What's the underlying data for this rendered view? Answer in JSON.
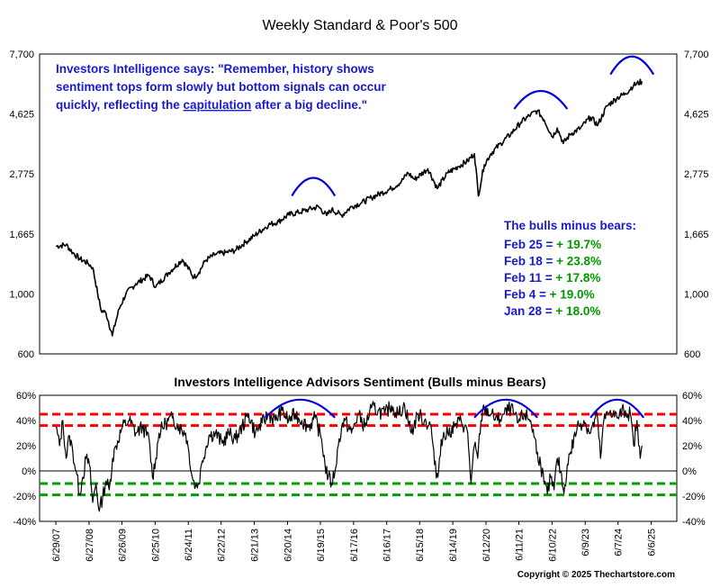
{
  "chart_data": [
    {
      "type": "line",
      "title": "Weekly Standard & Poor's 500",
      "y_scale": "log",
      "ylim": [
        600,
        7700
      ],
      "yticks": [
        "7,700",
        "4,625",
        "2,775",
        "1,665",
        "1,000",
        "600"
      ],
      "ytick_values": [
        7700,
        4625,
        2775,
        1665,
        1000,
        600
      ],
      "annotation": {
        "line1_pre": "Investors Intelligence says: \"Remember, history shows",
        "line2": "sentiment tops form slowly but bottom signals can occur",
        "line3_pre": "quickly, reflecting the ",
        "line3_underlined": "capitulation",
        "line3_post": " after a big decline.\""
      },
      "bulls_minus_bears_box": {
        "heading": "The bulls minus bears:",
        "rows": [
          {
            "date": "Feb 25 = ",
            "value": "+ 19.7%"
          },
          {
            "date": "Feb 18 = ",
            "value": "+ 23.8%"
          },
          {
            "date": "Feb 11 = ",
            "value": "+ 17.8%"
          },
          {
            "date": "Feb 4 = ",
            "value": "+ 19.0%"
          },
          {
            "date": "Jan 28 = ",
            "value": "+ 18.0%"
          }
        ]
      },
      "series": [
        {
          "x": [
            2007.49,
            2007.8,
            2008.0,
            2008.2,
            2008.45,
            2008.6,
            2008.75,
            2008.85,
            2009.0,
            2009.19,
            2009.4,
            2009.6,
            2009.9,
            2010.3,
            2010.5,
            2010.9,
            2011.3,
            2011.65,
            2011.8,
            2012.0,
            2012.3,
            2012.6,
            2012.9,
            2013.2,
            2013.5,
            2013.9,
            2014.2,
            2014.5,
            2014.8,
            2015.1,
            2015.4,
            2015.65,
            2015.8,
            2016.1,
            2016.4,
            2016.7,
            2017.0,
            2017.3,
            2017.6,
            2017.9,
            2018.1,
            2018.3,
            2018.7,
            2018.98,
            2019.3,
            2019.6,
            2019.9,
            2020.1,
            2020.22,
            2020.4,
            2020.6,
            2020.9,
            2021.2,
            2021.5,
            2021.8,
            2022.0,
            2022.2,
            2022.45,
            2022.6,
            2022.78,
            2023.0,
            2023.3,
            2023.6,
            2023.82,
            2024.1,
            2024.4,
            2024.65,
            2024.9,
            2025.15
          ],
          "values": [
            1500,
            1520,
            1420,
            1350,
            1300,
            1250,
            1000,
            870,
            850,
            700,
            880,
            1000,
            1090,
            1170,
            1060,
            1200,
            1340,
            1150,
            1200,
            1330,
            1400,
            1420,
            1450,
            1550,
            1650,
            1800,
            1850,
            1960,
            2000,
            2050,
            2100,
            1950,
            2050,
            1950,
            2100,
            2170,
            2270,
            2360,
            2450,
            2600,
            2800,
            2650,
            2900,
            2450,
            2800,
            2950,
            3100,
            3300,
            2300,
            3000,
            3300,
            3600,
            3900,
            4300,
            4600,
            4750,
            4400,
            3800,
            4100,
            3600,
            3900,
            4100,
            4500,
            4200,
            4950,
            5300,
            5500,
            5900,
            6100
          ]
        }
      ],
      "bracket_arcs": [
        [
          2014.6,
          2015.9
        ],
        [
          2021.3,
          2022.9
        ],
        [
          2024.2,
          2025.5
        ]
      ]
    },
    {
      "type": "line",
      "title": "Investors Intelligence Advisors Sentiment (Bulls minus Bears)",
      "ylim": [
        -40,
        60
      ],
      "yticks": [
        "60%",
        "40%",
        "20%",
        "0%",
        "-20%",
        "-40%"
      ],
      "ytick_values": [
        60,
        40,
        20,
        0,
        -20,
        -40
      ],
      "reference_lines": [
        {
          "value": 45,
          "color": "#ff0000"
        },
        {
          "value": 36,
          "color": "#ff0000"
        },
        {
          "value": -10,
          "color": "#00a000"
        },
        {
          "value": -19,
          "color": "#00a000"
        }
      ],
      "series": [
        {
          "x": [
            2007.49,
            2007.6,
            2007.7,
            2007.8,
            2007.9,
            2008.0,
            2008.1,
            2008.2,
            2008.3,
            2008.4,
            2008.5,
            2008.6,
            2008.7,
            2008.8,
            2008.9,
            2009.0,
            2009.1,
            2009.2,
            2009.3,
            2009.5,
            2009.7,
            2009.9,
            2010.1,
            2010.3,
            2010.4,
            2010.5,
            2010.6,
            2010.8,
            2011.0,
            2011.2,
            2011.4,
            2011.5,
            2011.6,
            2011.7,
            2011.8,
            2011.9,
            2012.1,
            2012.3,
            2012.5,
            2012.7,
            2012.9,
            2013.1,
            2013.3,
            2013.5,
            2013.7,
            2013.9,
            2014.1,
            2014.3,
            2014.5,
            2014.7,
            2014.9,
            2015.1,
            2015.3,
            2015.5,
            2015.6,
            2015.7,
            2015.8,
            2015.9,
            2016.0,
            2016.1,
            2016.2,
            2016.4,
            2016.6,
            2016.8,
            2017.0,
            2017.2,
            2017.4,
            2017.6,
            2017.8,
            2018.0,
            2018.2,
            2018.4,
            2018.6,
            2018.8,
            2018.9,
            2019.0,
            2019.1,
            2019.3,
            2019.5,
            2019.7,
            2019.9,
            2020.0,
            2020.1,
            2020.2,
            2020.3,
            2020.4,
            2020.6,
            2020.8,
            2021.0,
            2021.2,
            2021.4,
            2021.6,
            2021.8,
            2022.0,
            2022.1,
            2022.2,
            2022.3,
            2022.4,
            2022.5,
            2022.6,
            2022.7,
            2022.8,
            2022.9,
            2023.0,
            2023.2,
            2023.4,
            2023.6,
            2023.8,
            2023.9,
            2024.0,
            2024.2,
            2024.4,
            2024.6,
            2024.8,
            2024.9,
            2025.0,
            2025.05,
            2025.1,
            2025.15
          ],
          "values": [
            35,
            20,
            40,
            10,
            28,
            15,
            0,
            -18,
            -5,
            10,
            5,
            -25,
            -10,
            -32,
            -20,
            -8,
            -15,
            10,
            20,
            35,
            40,
            30,
            35,
            25,
            -5,
            10,
            30,
            38,
            42,
            35,
            30,
            15,
            -5,
            -12,
            -10,
            8,
            28,
            30,
            22,
            30,
            25,
            35,
            45,
            30,
            38,
            45,
            40,
            48,
            40,
            45,
            40,
            35,
            42,
            25,
            5,
            -5,
            -10,
            0,
            20,
            35,
            40,
            30,
            45,
            35,
            50,
            48,
            45,
            52,
            45,
            52,
            30,
            45,
            40,
            35,
            5,
            -5,
            25,
            30,
            35,
            40,
            30,
            -10,
            20,
            10,
            40,
            50,
            45,
            40,
            45,
            50,
            38,
            45,
            40,
            15,
            5,
            -10,
            -18,
            -5,
            -15,
            10,
            0,
            -18,
            5,
            15,
            35,
            40,
            30,
            45,
            10,
            40,
            48,
            42,
            48,
            45,
            20,
            40,
            20,
            10,
            20
          ]
        }
      ],
      "bracket_arcs": [
        [
          2013.8,
          2015.9
        ],
        [
          2020.1,
          2022.0
        ],
        [
          2023.6,
          2025.2
        ]
      ]
    }
  ],
  "x_axis": {
    "ticks": [
      "6/29/07",
      "6/27/08",
      "6/26/09",
      "6/25/10",
      "6/24/11",
      "6/22/12",
      "6/21/13",
      "6/20/14",
      "6/19/15",
      "6/17/16",
      "6/16/17",
      "6/15/18",
      "6/14/19",
      "6/12/20",
      "6/11/21",
      "6/10/22",
      "6/9/23",
      "6/7/24",
      "6/6/25"
    ],
    "tick_values": [
      2007.49,
      2008.49,
      2009.48,
      2010.48,
      2011.48,
      2012.47,
      2013.47,
      2014.47,
      2015.46,
      2016.46,
      2017.46,
      2018.45,
      2019.45,
      2020.45,
      2021.44,
      2022.44,
      2023.44,
      2024.43,
      2025.43
    ]
  },
  "copyright": "Copyright © 2025 Thechartstore.com",
  "colors": {
    "line": "#000000",
    "annotation_blue": "#1a1acc",
    "positive_green": "#009900",
    "arc_blue": "#0000dd",
    "red_ref": "#ff0000",
    "green_ref": "#00a000"
  }
}
